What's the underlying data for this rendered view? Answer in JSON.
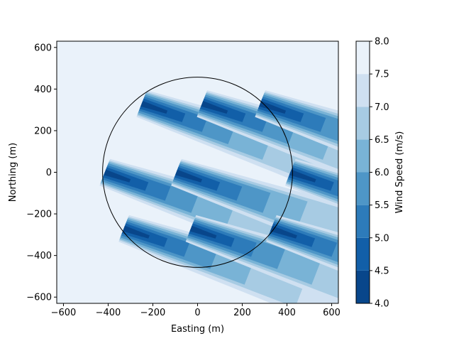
{
  "chart_data": {
    "type": "heatmap",
    "title": "",
    "xlabel": "Easting (m)",
    "ylabel": "Northing (m)",
    "xlim": [
      -630,
      630
    ],
    "ylim": [
      -630,
      630
    ],
    "x_ticks": [
      -600,
      -400,
      -200,
      0,
      200,
      400,
      600
    ],
    "y_ticks": [
      -600,
      -400,
      -200,
      0,
      200,
      400,
      600
    ],
    "grid": false,
    "background_speed": 8.0,
    "colorbar": {
      "label": "Wind Speed (m/s)",
      "ticks": [
        4.0,
        4.5,
        5.0,
        5.5,
        6.0,
        6.5,
        7.0,
        7.5,
        8.0
      ],
      "tick_labels": [
        "4.0",
        "4.5",
        "5.0",
        "5.5",
        "6.0",
        "6.5",
        "7.0",
        "7.5",
        "8.0"
      ],
      "levels": [
        {
          "min": 4.0,
          "max": 4.5,
          "color": "#08468b"
        },
        {
          "min": 4.5,
          "max": 5.0,
          "color": "#125fa8"
        },
        {
          "min": 5.0,
          "max": 5.5,
          "color": "#2d7bba"
        },
        {
          "min": 5.5,
          "max": 6.0,
          "color": "#4e96c7"
        },
        {
          "min": 6.0,
          "max": 6.5,
          "color": "#79b3d6"
        },
        {
          "min": 6.5,
          "max": 7.0,
          "color": "#a7cbe3"
        },
        {
          "min": 7.0,
          "max": 7.5,
          "color": "#cfe0f1"
        },
        {
          "min": 7.5,
          "max": 8.0,
          "color": "#eaf2fa"
        }
      ]
    },
    "boundary_circle": {
      "cx": 0,
      "cy": 0,
      "radius": 425
    },
    "wind_direction_deg": 290,
    "turbines": [
      {
        "x": -250,
        "y": 330
      },
      {
        "x": 20,
        "y": 330
      },
      {
        "x": 280,
        "y": 330
      },
      {
        "x": -415,
        "y": 0
      },
      {
        "x": -95,
        "y": 0
      },
      {
        "x": 415,
        "y": 0
      },
      {
        "x": -330,
        "y": -270
      },
      {
        "x": -30,
        "y": -270
      },
      {
        "x": 330,
        "y": -270
      }
    ]
  }
}
